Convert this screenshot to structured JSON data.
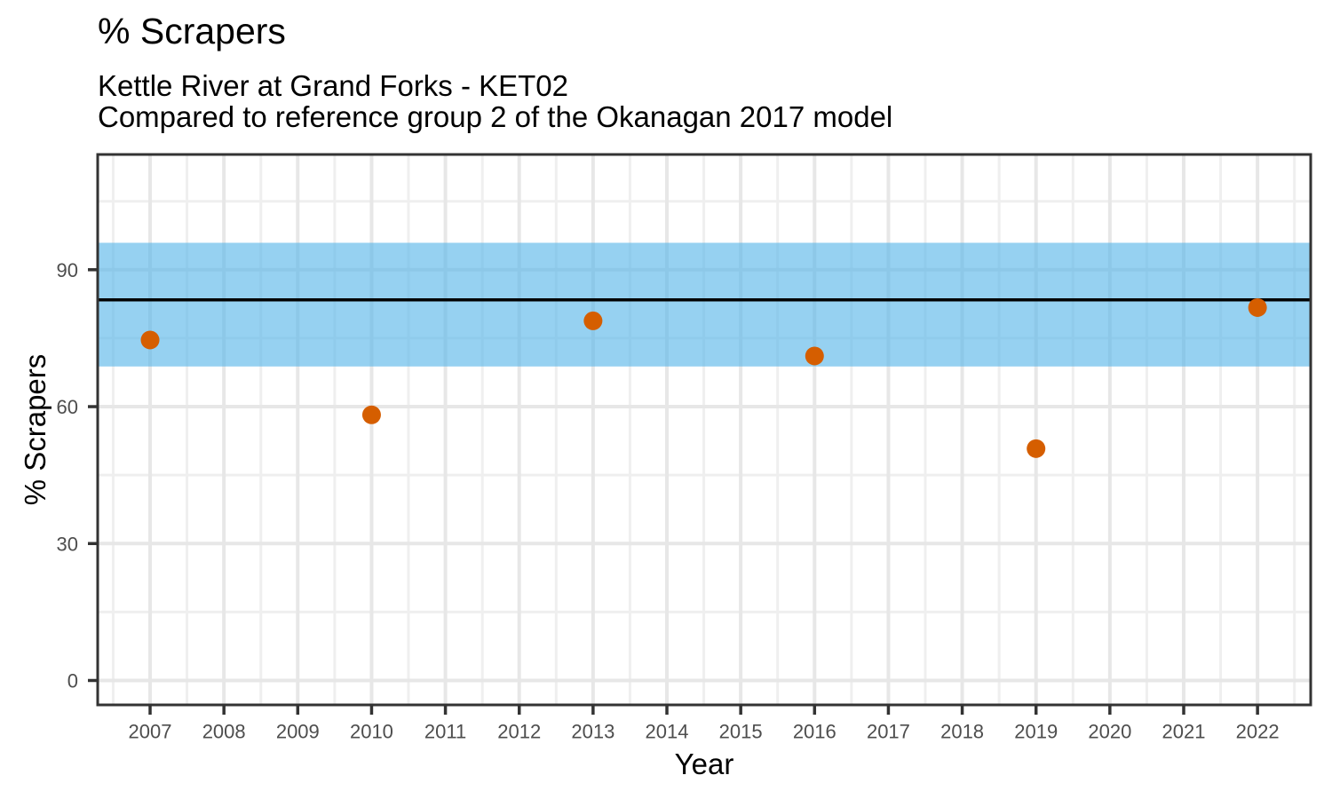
{
  "chart_data": {
    "type": "scatter",
    "title": "% Scrapers",
    "subtitle_line1": "Kettle River at Grand Forks - KET02",
    "subtitle_line2": "Compared to reference group 2 of the Okanagan 2017 model",
    "xlabel": "Year",
    "ylabel": "% Scrapers",
    "x_ticks": [
      2007,
      2008,
      2009,
      2010,
      2011,
      2012,
      2013,
      2014,
      2015,
      2016,
      2017,
      2018,
      2019,
      2020,
      2021,
      2022
    ],
    "y_ticks": [
      0,
      30,
      60,
      90
    ],
    "xlim": [
      2006.29,
      2022.72
    ],
    "ylim": [
      -5.35,
      115.25
    ],
    "grid": {
      "major": true,
      "minor": true
    },
    "legend_position": "none",
    "points": {
      "x": [
        2007,
        2010,
        2013,
        2016,
        2019,
        2022
      ],
      "y": [
        74.6,
        58.2,
        78.8,
        71.1,
        50.8,
        81.7
      ]
    },
    "reference_band": {
      "label": "reference group 2 interval",
      "low": 68.8,
      "high": 95.9,
      "mean": 83.4
    },
    "colors": {
      "point": "#D55E00",
      "band": "#56B4E9",
      "band_opacity": 0.62,
      "mean_line": "#000000",
      "grid_major": "#E7E7E7",
      "grid_minor": "#EFEFEF",
      "panel_border": "#333333",
      "tick_mark": "#333333",
      "tick_label": "#4D4D4D",
      "text": "#000000"
    }
  }
}
